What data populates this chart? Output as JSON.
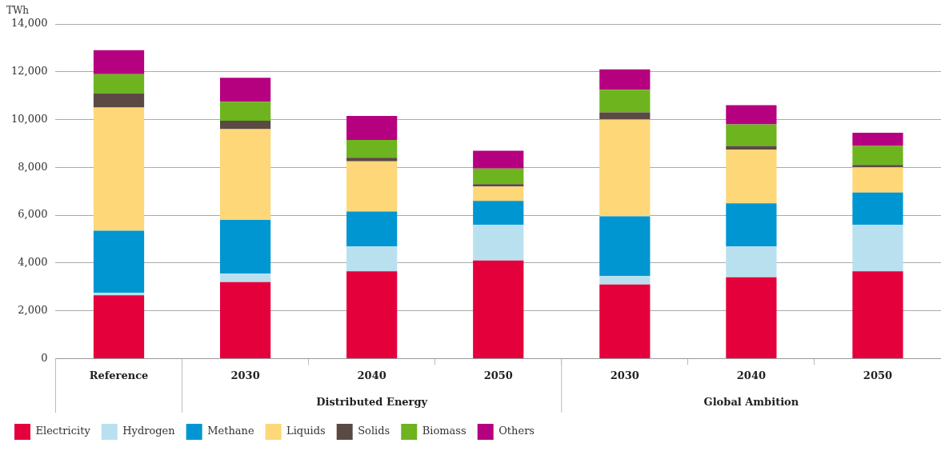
{
  "chart_data": {
    "type": "bar",
    "stacked": true,
    "ylabel": "TWh",
    "categories": [
      "Reference",
      "2030",
      "2040",
      "2050",
      "2030",
      "2040",
      "2050"
    ],
    "series": [
      {
        "name": "Electricity",
        "color": "#e4003b",
        "values": [
          2650,
          3200,
          3650,
          4100,
          3100,
          3400,
          3650
        ]
      },
      {
        "name": "Hydrogen",
        "color": "#b9e0ef",
        "values": [
          100,
          350,
          1050,
          1500,
          350,
          1300,
          1950
        ]
      },
      {
        "name": "Methane",
        "color": "#0096d2",
        "values": [
          2600,
          2250,
          1450,
          1000,
          2500,
          1800,
          1350
        ]
      },
      {
        "name": "Liquids",
        "color": "#fdd778",
        "values": [
          5150,
          3800,
          2100,
          600,
          4050,
          2250,
          1050
        ]
      },
      {
        "name": "Solids",
        "color": "#5b4a43",
        "values": [
          600,
          350,
          150,
          100,
          300,
          150,
          100
        ]
      },
      {
        "name": "Biomass",
        "color": "#6db41f",
        "values": [
          800,
          800,
          750,
          650,
          950,
          900,
          800
        ]
      },
      {
        "name": "Others",
        "color": "#b5007f",
        "values": [
          1000,
          1000,
          1000,
          750,
          850,
          800,
          550
        ]
      }
    ],
    "annotations": [
      "Distributed Energy",
      "Global Ambition"
    ],
    "ylim": [
      0,
      14000
    ],
    "yticks": [
      0,
      {
        "value": 2000,
        "label": "2,000"
      },
      {
        "value": 4000,
        "label": "4,000"
      },
      {
        "value": 6000,
        "label": "6,000"
      },
      {
        "value": 8000,
        "label": "8,000"
      },
      {
        "value": 10000,
        "label": "10,000"
      },
      {
        "value": 12000,
        "label": "12,000"
      },
      {
        "value": 14000,
        "label": "14,000"
      }
    ],
    "grid": "y",
    "legend": "bottom"
  }
}
